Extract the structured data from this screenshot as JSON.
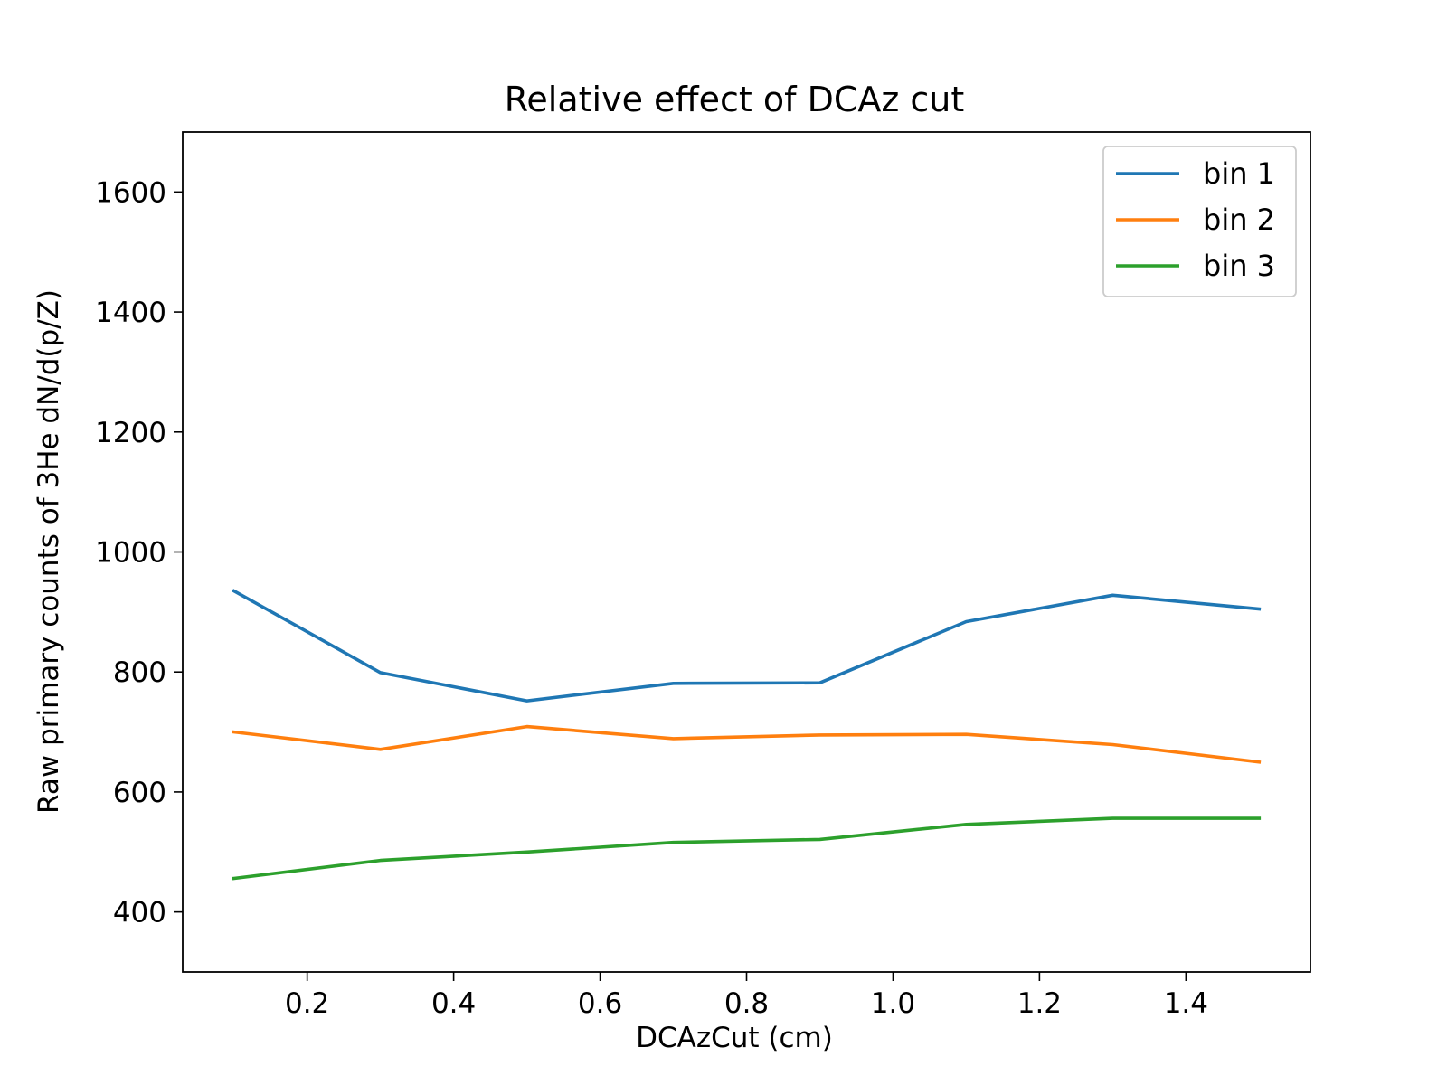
{
  "chart_data": {
    "type": "line",
    "title": "Relative effect of DCAz cut",
    "xlabel": "DCAzCut (cm)",
    "ylabel": "Raw primary counts of 3He dN/d(p/Z)",
    "xlim": [
      0.03,
      1.57
    ],
    "ylim": [
      300,
      1700
    ],
    "xticks": [
      0.2,
      0.4,
      0.6,
      0.8,
      1.0,
      1.2,
      1.4
    ],
    "xtick_labels": [
      "0.2",
      "0.4",
      "0.6",
      "0.8",
      "1.0",
      "1.2",
      "1.4"
    ],
    "yticks": [
      400,
      600,
      800,
      1000,
      1200,
      1400,
      1600
    ],
    "ytick_labels": [
      "400",
      "600",
      "800",
      "1000",
      "1200",
      "1400",
      "1600"
    ],
    "x": [
      0.1,
      0.3,
      0.5,
      0.7,
      0.9,
      1.1,
      1.3,
      1.5
    ],
    "series": [
      {
        "name": "bin 1",
        "color": "#1f77b4",
        "values": [
          935,
          799,
          752,
          781,
          782,
          884,
          928,
          905
        ]
      },
      {
        "name": "bin 2",
        "color": "#ff7f0e",
        "values": [
          700,
          671,
          709,
          689,
          695,
          696,
          679,
          650
        ]
      },
      {
        "name": "bin 3",
        "color": "#2ca02c",
        "values": [
          456,
          486,
          500,
          516,
          521,
          546,
          556,
          556
        ]
      }
    ],
    "grid": false,
    "legend_position": "upper-right"
  }
}
